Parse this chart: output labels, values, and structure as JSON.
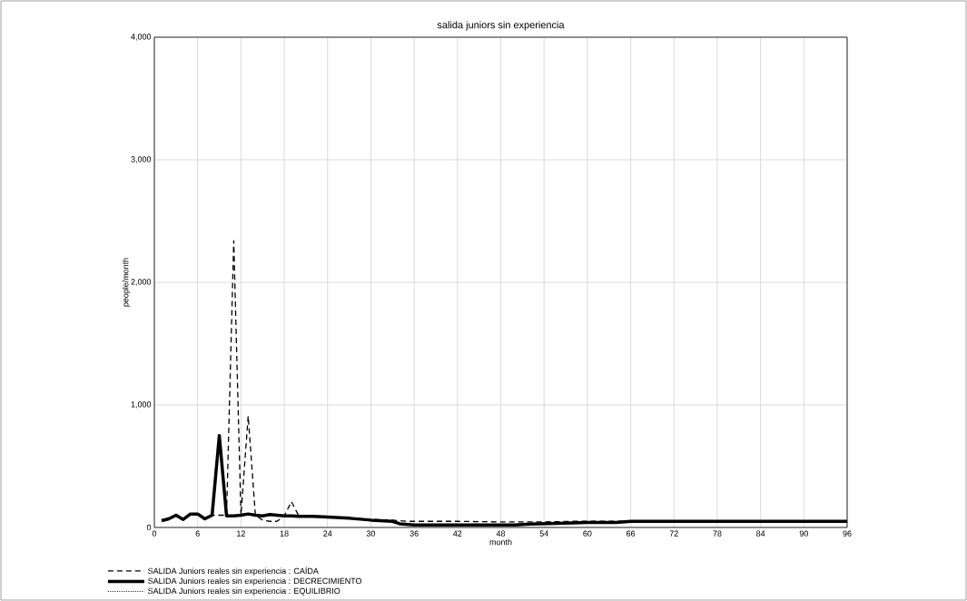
{
  "chart_data": {
    "type": "line",
    "title": "salida juniors sin experiencia",
    "xlabel": "month",
    "ylabel": "people/month",
    "xlim": [
      0,
      96
    ],
    "xticks": [
      0,
      6,
      12,
      18,
      24,
      30,
      36,
      42,
      48,
      54,
      60,
      66,
      72,
      78,
      84,
      90,
      96
    ],
    "ylim": [
      0,
      4000
    ],
    "yticks": [
      0,
      {
        "value": 1000,
        "label": "1,000"
      },
      {
        "value": 2000,
        "label": "2,000"
      },
      {
        "value": 3000,
        "label": "3,000"
      },
      {
        "value": 4000,
        "label": "4,000"
      }
    ],
    "grid": true,
    "legend": "bottom",
    "marker": "none",
    "x": [
      1,
      2,
      3,
      4,
      5,
      6,
      7,
      8,
      9,
      10,
      11,
      12,
      13,
      14,
      15,
      16,
      17,
      18,
      19,
      20,
      22,
      24,
      27,
      30,
      33,
      34,
      36,
      42,
      48,
      50,
      52,
      57,
      60,
      64,
      66,
      72,
      78,
      84,
      90,
      96
    ],
    "series": [
      {
        "name": "SALIDA Juniors reales sin experiencia : CAÍDA",
        "color": "#000000",
        "line_style": "dashed",
        "x": [
          1,
          2,
          3,
          4,
          5,
          6,
          7,
          8,
          9,
          10,
          11,
          12,
          13,
          14,
          15,
          16,
          17,
          18,
          19,
          20,
          22,
          24,
          27,
          30,
          33,
          35,
          42,
          48,
          54,
          58,
          66,
          96
        ],
        "values": [
          55,
          70,
          100,
          65,
          110,
          110,
          70,
          100,
          100,
          100,
          2340,
          100,
          910,
          100,
          60,
          50,
          50,
          95,
          210,
          95,
          90,
          85,
          80,
          65,
          60,
          50,
          50,
          45,
          45,
          50,
          50,
          50
        ]
      },
      {
        "name": "SALIDA Juniors reales sin experiencia : DECRECIMIENTO",
        "color": "#000000",
        "line_style": "solid",
        "values": [
          55,
          70,
          100,
          65,
          110,
          110,
          70,
          100,
          750,
          95,
          95,
          100,
          110,
          100,
          95,
          105,
          100,
          95,
          95,
          90,
          90,
          85,
          75,
          60,
          50,
          30,
          20,
          20,
          20,
          20,
          28,
          35,
          40,
          40,
          50,
          50,
          50,
          50,
          50,
          50
        ]
      },
      {
        "name": "SALIDA Juniors reales sin experiencia : EQUILIBRIO",
        "color": "#000000",
        "line_style": "dotted",
        "values": [
          null,
          null,
          null,
          null,
          null,
          null,
          null,
          null,
          null,
          null,
          null,
          null,
          null,
          null,
          null,
          null,
          null,
          null,
          null,
          null,
          null,
          null,
          null,
          null,
          null,
          null,
          null,
          null,
          null,
          null,
          null,
          null,
          null,
          null,
          null,
          null,
          null,
          null,
          null,
          null
        ]
      }
    ]
  }
}
